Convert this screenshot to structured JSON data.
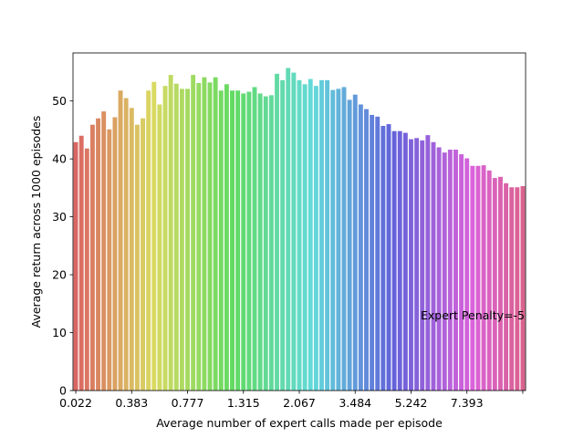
{
  "chart_data": {
    "type": "bar",
    "xlabel": "Average number of expert calls made per episode",
    "ylabel": "Average return across 1000 episodes",
    "ylim": [
      0,
      58.3
    ],
    "yticks": [
      0,
      10,
      20,
      30,
      40,
      50
    ],
    "x_tick_labels": [
      "0.022",
      "0.383",
      "0.777",
      "1.315",
      "2.067",
      "3.484",
      "5.242",
      "7.393",
      ""
    ],
    "x_tick_every": 10,
    "annotation": "Expert Penalty=-5",
    "grid": false,
    "legend": "none",
    "color_palette": "husl",
    "values": [
      42.9,
      44.0,
      41.8,
      45.9,
      47.0,
      48.2,
      45.1,
      47.2,
      51.8,
      50.5,
      48.8,
      45.9,
      47.0,
      51.8,
      53.3,
      49.4,
      52.6,
      54.5,
      53.0,
      52.1,
      52.1,
      54.5,
      53.1,
      54.1,
      53.2,
      54.1,
      51.8,
      52.9,
      51.8,
      51.8,
      51.3,
      51.6,
      52.4,
      51.3,
      50.8,
      51.0,
      54.7,
      53.6,
      55.7,
      54.9,
      53.6,
      52.9,
      53.8,
      52.6,
      53.6,
      53.6,
      51.9,
      52.1,
      52.4,
      50.2,
      51.1,
      49.4,
      48.6,
      47.6,
      47.3,
      45.7,
      46.0,
      44.8,
      44.8,
      44.5,
      43.4,
      43.6,
      43.2,
      44.1,
      42.9,
      42.0,
      41.1,
      41.6,
      41.6,
      40.8,
      40.1,
      38.8,
      38.8,
      38.9,
      38.0,
      36.7,
      36.9,
      35.8,
      35.1,
      35.1,
      35.3
    ]
  }
}
